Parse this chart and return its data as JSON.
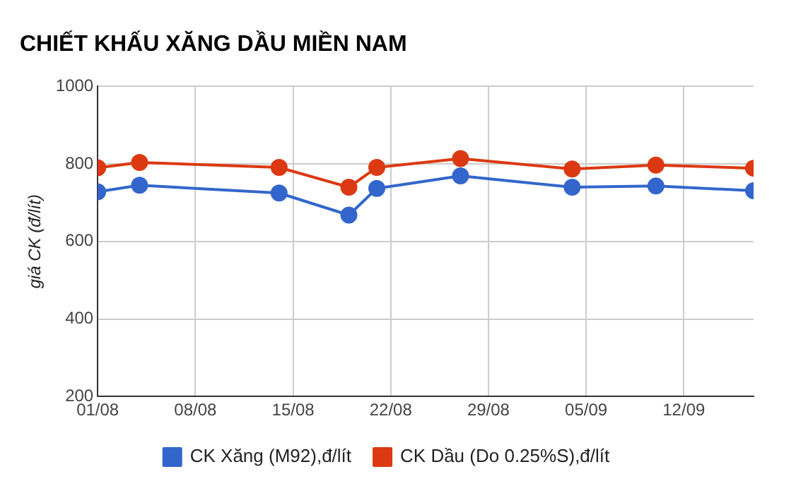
{
  "chart_data": {
    "type": "line",
    "title": "CHIẾT KHẤU XĂNG DẦU MIỀN NAM",
    "ylabel": "giá CK (đ/lít)",
    "x": [
      "--08-01",
      "--08-04",
      "--08-14",
      "--08-19",
      "--08-21",
      "--08-27",
      "--09-04",
      "--09-10",
      "--09-17"
    ],
    "series": [
      {
        "name": "CK Xăng (M92),đ/lít",
        "color": "#3366cc",
        "values": [
          728,
          745,
          725,
          668,
          737,
          769,
          740,
          743,
          731
        ]
      },
      {
        "name": "CK Dầu (Do 0.25%S),đ/lít",
        "color": "#dc3912",
        "values": [
          790,
          804,
          791,
          740,
          791,
          814,
          787,
          797,
          789
        ]
      }
    ],
    "xlim": [
      "--08-01",
      "--09-17"
    ],
    "xticks": [
      {
        "value": "--08-01",
        "label": "01/08"
      },
      {
        "value": "--08-08",
        "label": "08/08"
      },
      {
        "value": "--08-15",
        "label": "15/08"
      },
      {
        "value": "--08-22",
        "label": "22/08"
      },
      {
        "value": "--08-29",
        "label": "29/08"
      },
      {
        "value": "--09-05",
        "label": "05/09"
      },
      {
        "value": "--09-12",
        "label": "12/09"
      }
    ],
    "ylim": [
      200,
      1000
    ],
    "yticks": [
      200,
      400,
      600,
      800,
      1000
    ],
    "grid": true,
    "legend": "bottom",
    "marker": "circle",
    "line_style": "solid"
  }
}
